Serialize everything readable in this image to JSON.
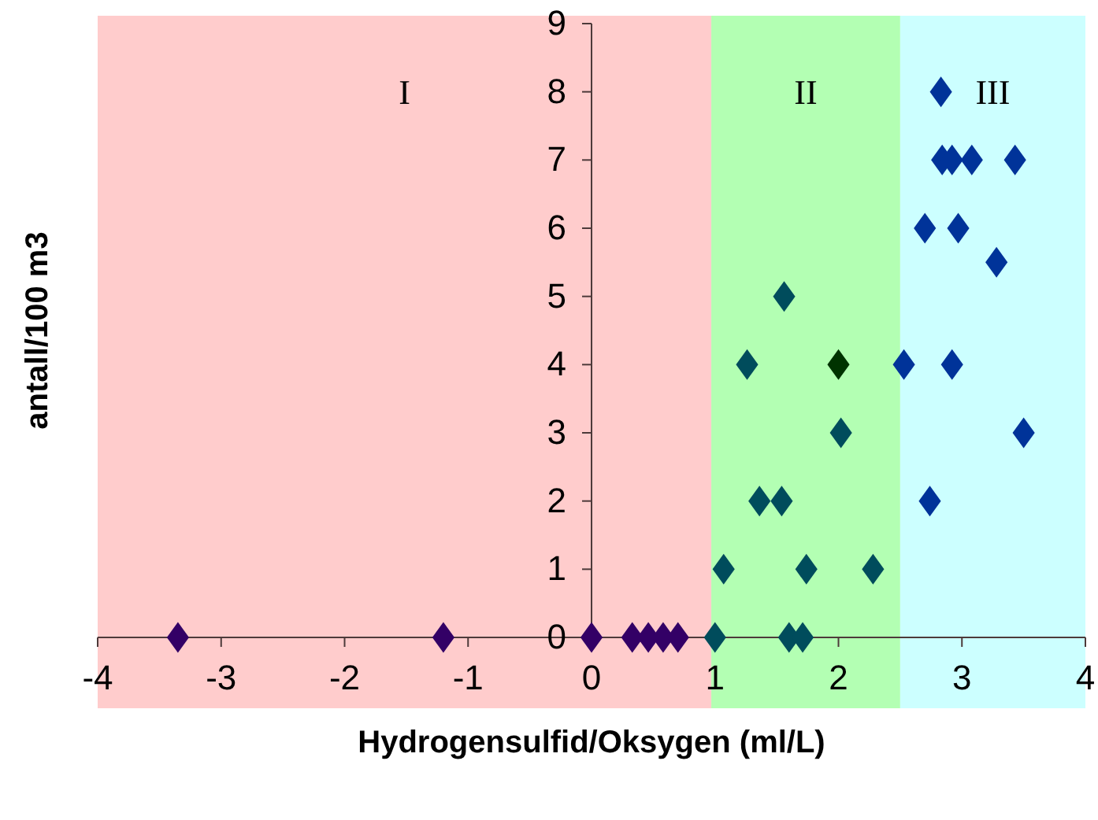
{
  "chart_data": {
    "type": "scatter",
    "xlabel": "Hydrogensulfid/Oksygen (ml/L)",
    "ylabel": "antall/100 m3",
    "xlim": [
      -4,
      4
    ],
    "xticks": [
      -4,
      -3,
      -2,
      -1,
      0,
      1,
      2,
      3,
      4
    ],
    "ylim": [
      0,
      9
    ],
    "yticks": [
      0,
      1,
      2,
      3,
      4,
      5,
      6,
      7,
      8,
      9
    ],
    "grid": false,
    "marker": "diamond",
    "bands": [
      {
        "axis": "x",
        "from": -4,
        "to": 0.97,
        "label": "I",
        "color": "#ffcccc"
      },
      {
        "axis": "x",
        "from": 0.97,
        "to": 2.5,
        "label": "II",
        "color": "#b3ffb3"
      },
      {
        "axis": "x",
        "from": 2.5,
        "to": 4,
        "label": "III",
        "color": "#ccffff"
      }
    ],
    "series": [
      {
        "color": "#330066",
        "x": [
          -3.35,
          -1.2,
          0,
          0.33,
          0.46,
          0.58,
          0.7
        ],
        "values": [
          0,
          0,
          0,
          0,
          0,
          0,
          0
        ]
      },
      {
        "color": "#004c5c",
        "x": [
          1.0,
          1.6,
          1.71,
          1.07,
          1.74,
          2.28,
          1.36,
          1.54,
          2.02,
          1.26,
          1.56
        ],
        "values": [
          0,
          0,
          0,
          1,
          1,
          1,
          2,
          2,
          3,
          4,
          5
        ]
      },
      {
        "color": "#003300",
        "x": [
          2.0
        ],
        "values": [
          4
        ]
      },
      {
        "color": "#003399",
        "x": [
          2.74,
          3.5,
          2.53,
          2.92,
          3.28,
          2.7,
          2.97,
          2.84,
          2.92,
          3.08,
          3.43,
          2.83
        ],
        "values": [
          2,
          3,
          4,
          4,
          5.5,
          6,
          6,
          7,
          7,
          7,
          7,
          8
        ]
      }
    ]
  }
}
